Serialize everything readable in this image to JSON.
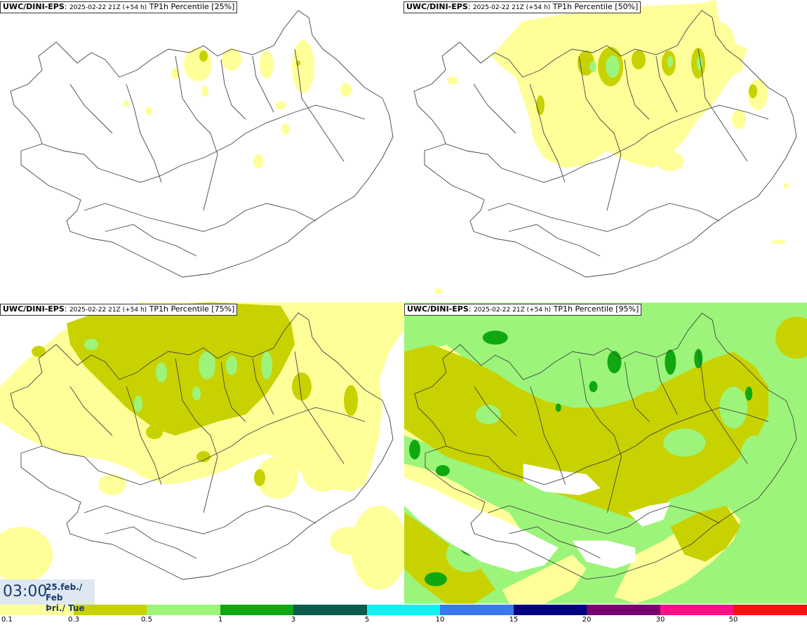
{
  "panels": [
    {
      "model": "UWC/DINI-EPS",
      "run": "2025-02-22 21Z (+54 h)",
      "product": "TP1h Percentile [25%]"
    },
    {
      "model": "UWC/DINI-EPS",
      "run": "2025-02-22 21Z (+54 h)",
      "product": "TP1h Percentile [50%]"
    },
    {
      "model": "UWC/DINI-EPS",
      "run": "2025-02-22 21Z (+54 h)",
      "product": "TP1h Percentile [75%]"
    },
    {
      "model": "UWC/DINI-EPS",
      "run": "2025-02-22 21Z (+54 h)",
      "product": "TP1h Percentile [95%]"
    }
  ],
  "valid_time": {
    "time": "03:00",
    "date_line1": "25.feb./ Feb",
    "date_line2": "Þri./ Tue"
  },
  "legend": {
    "labels": [
      "0.1",
      "0.3",
      "0.5",
      "1",
      "3",
      "5",
      "10",
      "15",
      "20",
      "30",
      "50"
    ],
    "colors": [
      "#ffff99",
      "#c8d200",
      "#9cf57a",
      "#10a810",
      "#0a5c4c",
      "#10f0f0",
      "#3a78f0",
      "#000080",
      "#7a0070",
      "#ff1088",
      "#ff1010"
    ]
  },
  "map_colors": {
    "background": "#ffffff",
    "light": "#ffff99",
    "olive": "#c8d200",
    "lightgreen": "#9cf57a",
    "green": "#10a810",
    "coastline": "#444444"
  }
}
